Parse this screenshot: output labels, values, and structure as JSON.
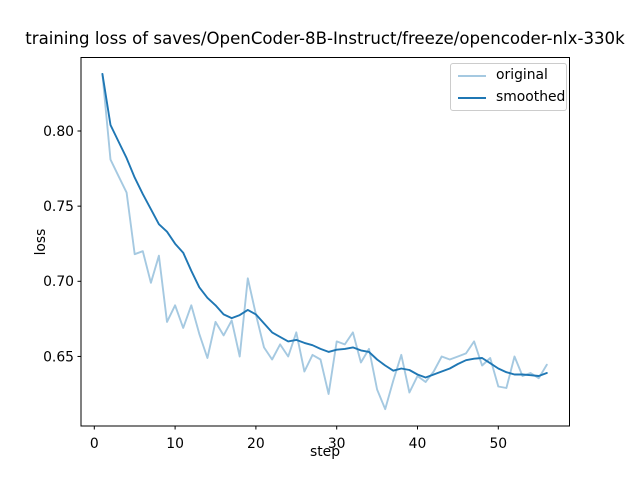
{
  "chart_data": {
    "type": "line",
    "title": "training loss of saves/OpenCoder-8B-Instruct/freeze/opencoder-nlx-330k",
    "xlabel": "step",
    "ylabel": "loss",
    "x_start": 1,
    "x_ticks": [
      "0",
      "10",
      "20",
      "30",
      "40",
      "50"
    ],
    "x_tick_values": [
      0,
      10,
      20,
      30,
      40,
      50
    ],
    "y_ticks": [
      "0.65",
      "0.70",
      "0.75",
      "0.80"
    ],
    "y_tick_values": [
      0.65,
      0.7,
      0.75,
      0.8
    ],
    "xlim": [
      -1.75,
      58.75
    ],
    "ylim": [
      0.604,
      0.849
    ],
    "grid": false,
    "legend_position": "upper right",
    "background_color": "#ffffff",
    "axis_color": "#000000",
    "series": [
      {
        "name": "original",
        "color": "#a5c9e1",
        "values": [
          0.838,
          0.781,
          0.77,
          0.759,
          0.718,
          0.72,
          0.699,
          0.717,
          0.673,
          0.684,
          0.669,
          0.684,
          0.665,
          0.649,
          0.673,
          0.664,
          0.674,
          0.65,
          0.702,
          0.678,
          0.656,
          0.648,
          0.658,
          0.65,
          0.666,
          0.64,
          0.651,
          0.648,
          0.625,
          0.66,
          0.658,
          0.666,
          0.646,
          0.655,
          0.628,
          0.615,
          0.634,
          0.651,
          0.626,
          0.637,
          0.633,
          0.64,
          0.65,
          0.648,
          0.65,
          0.652,
          0.66,
          0.644,
          0.649,
          0.63,
          0.629,
          0.65,
          0.637,
          0.639,
          0.6355,
          0.6445
        ]
      },
      {
        "name": "smoothed",
        "color": "#1f77b4",
        "values": [
          0.838,
          0.804,
          0.793,
          0.782,
          0.769,
          0.758,
          0.748,
          0.738,
          0.733,
          0.725,
          0.719,
          0.707,
          0.696,
          0.689,
          0.684,
          0.678,
          0.6755,
          0.6775,
          0.681,
          0.678,
          0.672,
          0.666,
          0.663,
          0.66,
          0.661,
          0.659,
          0.6575,
          0.655,
          0.653,
          0.6545,
          0.655,
          0.656,
          0.654,
          0.653,
          0.648,
          0.644,
          0.6405,
          0.642,
          0.641,
          0.638,
          0.636,
          0.638,
          0.64,
          0.642,
          0.645,
          0.6475,
          0.6485,
          0.649,
          0.6455,
          0.642,
          0.6395,
          0.638,
          0.638,
          0.6375,
          0.637,
          0.639
        ]
      }
    ]
  }
}
